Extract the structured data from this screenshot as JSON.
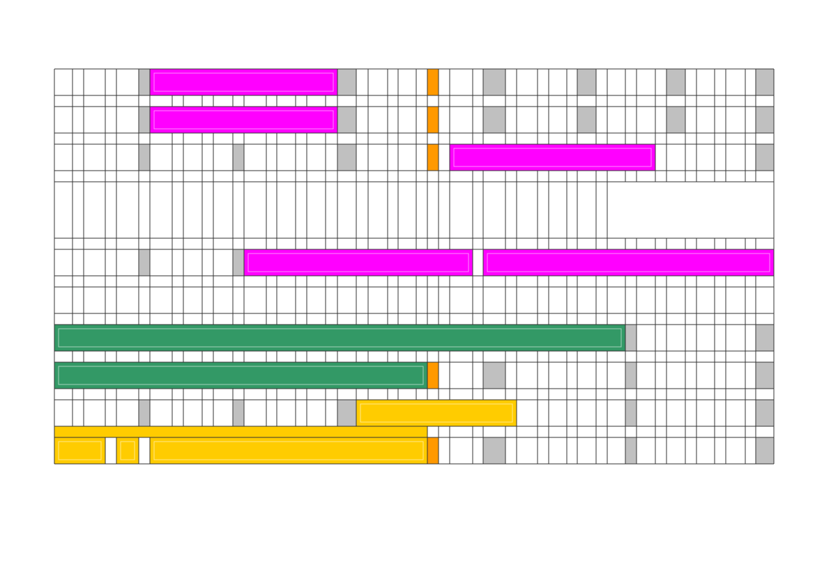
{
  "chart_data": {
    "type": "table",
    "colors": {
      "grid_line": "#333333",
      "background": "#ffffff",
      "magenta": "#ff00ff",
      "green": "#339966",
      "yellow": "#ffcc00",
      "orange": "#ff9900",
      "gray": "#c0c0c0"
    },
    "columns": 47,
    "grid_on": true,
    "rows": [
      {
        "kind": "tall"
      },
      {
        "kind": "thin"
      },
      {
        "kind": "tall"
      },
      {
        "kind": "thin"
      },
      {
        "kind": "tall"
      },
      {
        "kind": "thin"
      },
      {
        "kind": "block"
      },
      {
        "kind": "thin"
      },
      {
        "kind": "tall"
      },
      {
        "kind": "thin"
      },
      {
        "kind": "tall"
      },
      {
        "kind": "thin"
      },
      {
        "kind": "tall"
      },
      {
        "kind": "thin"
      },
      {
        "kind": "tall"
      },
      {
        "kind": "thin"
      },
      {
        "kind": "tall"
      },
      {
        "kind": "thin"
      },
      {
        "kind": "tall"
      }
    ],
    "gray_columns": {
      "0": [
        5,
        18,
        28,
        34,
        40,
        46
      ],
      "2": [
        5,
        18,
        28,
        34,
        40,
        46
      ],
      "4": [
        5,
        11,
        18,
        46
      ],
      "8": [
        5,
        11
      ],
      "12": [
        37,
        46
      ],
      "14": [
        28,
        37,
        46
      ],
      "16": [
        5,
        11,
        18,
        37,
        46
      ],
      "18": [
        28,
        37,
        46
      ]
    },
    "orange_columns": {
      "0": [
        24
      ],
      "2": [
        24
      ],
      "4": [
        24
      ],
      "14": [
        24
      ],
      "18": [
        24
      ]
    },
    "bars": [
      {
        "row": 0,
        "from": 6,
        "to": 17,
        "color": "magenta"
      },
      {
        "row": 2,
        "from": 6,
        "to": 17,
        "color": "magenta"
      },
      {
        "row": 4,
        "from": 26,
        "to": 38,
        "color": "magenta"
      },
      {
        "row": 8,
        "from": 12,
        "to": 26,
        "color": "magenta"
      },
      {
        "row": 8,
        "from": 28,
        "to": 46,
        "color": "magenta"
      },
      {
        "row": 12,
        "from": 0,
        "to": 36,
        "color": "green"
      },
      {
        "row": 14,
        "from": 0,
        "to": 23,
        "color": "green"
      },
      {
        "row": 16,
        "from": 19,
        "to": 29,
        "color": "yellow"
      },
      {
        "row": 17,
        "from": 0,
        "to": 23,
        "color": "yellow"
      },
      {
        "row": 18,
        "from": 0,
        "to": 2,
        "color": "yellow"
      },
      {
        "row": 18,
        "from": 4,
        "to": 4,
        "color": "yellow"
      },
      {
        "row": 18,
        "from": 6,
        "to": 23,
        "color": "yellow"
      }
    ]
  }
}
